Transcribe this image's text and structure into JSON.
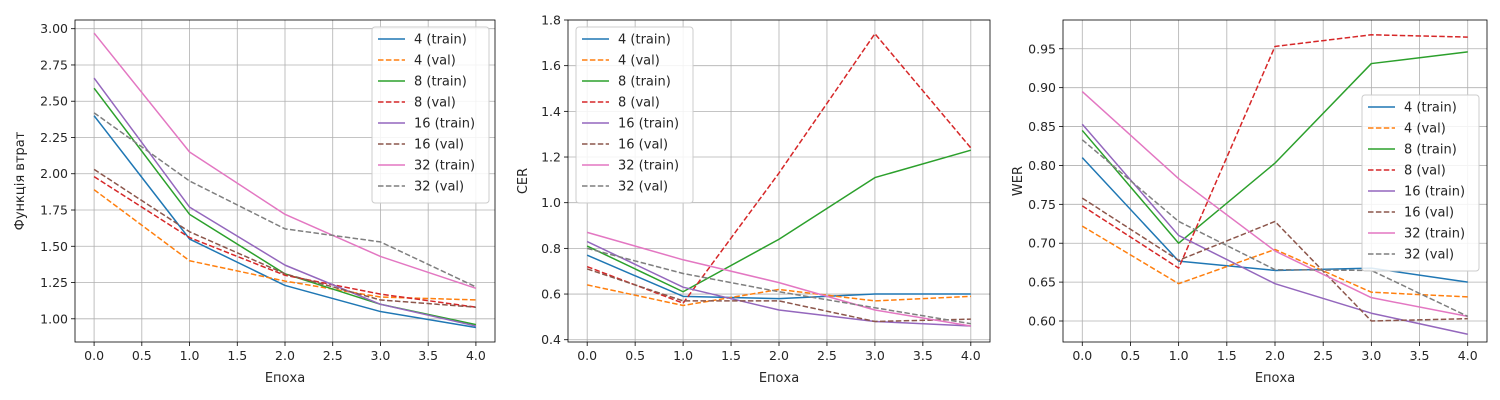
{
  "chart_data": [
    {
      "type": "line",
      "xlabel": "Епоха",
      "ylabel": "Функція втрат",
      "xlim": [
        -0.2,
        4.2
      ],
      "ylim": [
        0.84,
        3.06
      ],
      "xticks": [
        "0.0",
        "0.5",
        "1.0",
        "1.5",
        "2.0",
        "2.5",
        "3.0",
        "3.5",
        "4.0"
      ],
      "yticks": [
        "1.00",
        "1.25",
        "1.50",
        "1.75",
        "2.00",
        "2.25",
        "2.50",
        "2.75",
        "3.00"
      ],
      "grid": true,
      "legend_position": "top-right",
      "x": [
        0,
        1,
        2,
        3,
        4
      ],
      "series": [
        {
          "name": "4 (train)",
          "color": "#1f77b4",
          "dashed": false,
          "values": [
            2.4,
            1.55,
            1.23,
            1.05,
            0.94
          ]
        },
        {
          "name": "4 (val)",
          "color": "#ff7f0e",
          "dashed": true,
          "values": [
            1.89,
            1.4,
            1.26,
            1.15,
            1.13
          ]
        },
        {
          "name": "8 (train)",
          "color": "#2ca02c",
          "dashed": false,
          "values": [
            2.59,
            1.72,
            1.31,
            1.1,
            0.96
          ]
        },
        {
          "name": "8 (val)",
          "color": "#d62728",
          "dashed": true,
          "values": [
            1.98,
            1.56,
            1.3,
            1.17,
            1.08
          ]
        },
        {
          "name": "16 (train)",
          "color": "#9467bd",
          "dashed": false,
          "values": [
            2.66,
            1.77,
            1.37,
            1.1,
            0.95
          ]
        },
        {
          "name": "16 (val)",
          "color": "#8c564b",
          "dashed": true,
          "values": [
            2.03,
            1.6,
            1.31,
            1.13,
            1.08
          ]
        },
        {
          "name": "32 (train)",
          "color": "#e377c2",
          "dashed": false,
          "values": [
            2.97,
            2.15,
            1.72,
            1.43,
            1.21
          ]
        },
        {
          "name": "32 (val)",
          "color": "#7f7f7f",
          "dashed": true,
          "values": [
            2.42,
            1.95,
            1.62,
            1.53,
            1.22
          ]
        }
      ]
    },
    {
      "type": "line",
      "xlabel": "Епоха",
      "ylabel": "CER",
      "xlim": [
        -0.2,
        4.2
      ],
      "ylim": [
        0.39,
        1.8
      ],
      "xticks": [
        "0.0",
        "0.5",
        "1.0",
        "1.5",
        "2.0",
        "2.5",
        "3.0",
        "3.5",
        "4.0"
      ],
      "yticks": [
        "0.4",
        "0.6",
        "0.8",
        "1.0",
        "1.2",
        "1.4",
        "1.6",
        "1.8"
      ],
      "grid": true,
      "legend_position": "top-left",
      "x": [
        0,
        1,
        2,
        3,
        4
      ],
      "series": [
        {
          "name": "4 (train)",
          "color": "#1f77b4",
          "dashed": false,
          "values": [
            0.77,
            0.59,
            0.58,
            0.6,
            0.6
          ]
        },
        {
          "name": "4 (val)",
          "color": "#ff7f0e",
          "dashed": true,
          "values": [
            0.64,
            0.55,
            0.62,
            0.57,
            0.59
          ]
        },
        {
          "name": "8 (train)",
          "color": "#2ca02c",
          "dashed": false,
          "values": [
            0.81,
            0.61,
            0.84,
            1.11,
            1.23
          ]
        },
        {
          "name": "8 (val)",
          "color": "#d62728",
          "dashed": true,
          "values": [
            0.72,
            0.56,
            1.13,
            1.74,
            1.24
          ]
        },
        {
          "name": "16 (train)",
          "color": "#9467bd",
          "dashed": false,
          "values": [
            0.83,
            0.63,
            0.53,
            0.48,
            0.46
          ]
        },
        {
          "name": "16 (val)",
          "color": "#8c564b",
          "dashed": true,
          "values": [
            0.71,
            0.57,
            0.57,
            0.48,
            0.49
          ]
        },
        {
          "name": "32 (train)",
          "color": "#e377c2",
          "dashed": false,
          "values": [
            0.87,
            0.75,
            0.65,
            0.53,
            0.46
          ]
        },
        {
          "name": "32 (val)",
          "color": "#7f7f7f",
          "dashed": true,
          "values": [
            0.8,
            0.69,
            0.61,
            0.54,
            0.47
          ]
        }
      ]
    },
    {
      "type": "line",
      "xlabel": "Епоха",
      "ylabel": "WER",
      "xlim": [
        -0.2,
        4.2
      ],
      "ylim": [
        0.573,
        0.987
      ],
      "xticks": [
        "0.0",
        "0.5",
        "1.0",
        "1.5",
        "2.0",
        "2.5",
        "3.0",
        "3.5",
        "4.0"
      ],
      "yticks": [
        "0.60",
        "0.65",
        "0.70",
        "0.75",
        "0.80",
        "0.85",
        "0.90",
        "0.95"
      ],
      "grid": true,
      "legend_position": "center-right",
      "x": [
        0,
        1,
        2,
        3,
        4
      ],
      "series": [
        {
          "name": "4 (train)",
          "color": "#1f77b4",
          "dashed": false,
          "values": [
            0.81,
            0.677,
            0.665,
            0.668,
            0.65
          ]
        },
        {
          "name": "4 (val)",
          "color": "#ff7f0e",
          "dashed": true,
          "values": [
            0.722,
            0.648,
            0.692,
            0.637,
            0.631
          ]
        },
        {
          "name": "8 (train)",
          "color": "#2ca02c",
          "dashed": false,
          "values": [
            0.845,
            0.7,
            0.803,
            0.931,
            0.946
          ]
        },
        {
          "name": "8 (val)",
          "color": "#d62728",
          "dashed": true,
          "values": [
            0.748,
            0.668,
            0.953,
            0.968,
            0.965
          ]
        },
        {
          "name": "16 (train)",
          "color": "#9467bd",
          "dashed": false,
          "values": [
            0.853,
            0.71,
            0.648,
            0.61,
            0.583
          ]
        },
        {
          "name": "16 (val)",
          "color": "#8c564b",
          "dashed": true,
          "values": [
            0.758,
            0.678,
            0.728,
            0.6,
            0.603
          ]
        },
        {
          "name": "32 (train)",
          "color": "#e377c2",
          "dashed": false,
          "values": [
            0.895,
            0.783,
            0.69,
            0.63,
            0.606
          ]
        },
        {
          "name": "32 (val)",
          "color": "#7f7f7f",
          "dashed": true,
          "values": [
            0.833,
            0.728,
            0.666,
            0.665,
            0.606
          ]
        }
      ]
    }
  ]
}
